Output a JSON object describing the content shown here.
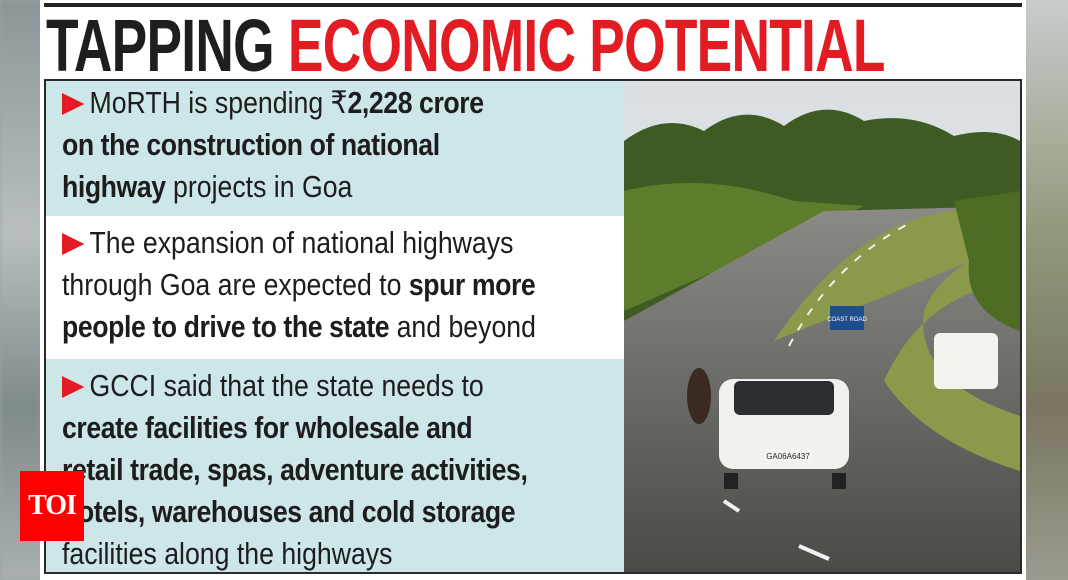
{
  "title": {
    "part1": "TAPPING",
    "part2": "ECONOMIC POTENTIAL",
    "accent_color": "#e31b23"
  },
  "bullets": [
    {
      "lines": [
        [
          {
            "text": "MoRTH is spending ₹",
            "bold": false
          },
          {
            "text": "2,228 crore",
            "bold": true
          }
        ],
        [
          {
            "text": "on the construction of national",
            "bold": true
          }
        ],
        [
          {
            "text": "highway",
            "bold": true
          },
          {
            "text": " projects in Goa",
            "bold": false
          }
        ]
      ]
    },
    {
      "lines": [
        [
          {
            "text": "The expansion of national highways",
            "bold": false
          }
        ],
        [
          {
            "text": "through Goa are expected to ",
            "bold": false
          },
          {
            "text": "spur more",
            "bold": true
          }
        ],
        [
          {
            "text": "people to drive to the state",
            "bold": true
          },
          {
            "text": " and beyond",
            "bold": false
          }
        ]
      ]
    },
    {
      "lines": [
        [
          {
            "text": "GCCI said that the state needs to",
            "bold": false
          }
        ],
        [
          {
            "text": "create facilities for wholesale and",
            "bold": true
          }
        ],
        [
          {
            "text": "retail trade, spas, adventure activities,",
            "bold": true
          }
        ],
        [
          {
            "text": "hotels, warehouses and cold storage",
            "bold": true
          }
        ],
        [
          {
            "text": "facilities along the highways",
            "bold": false
          }
        ]
      ]
    }
  ],
  "photo": {
    "sign_text": "COAST ROAD",
    "plate_text": "GA06A6437"
  },
  "logo": {
    "text": "TOI",
    "color": "#ff0000"
  }
}
